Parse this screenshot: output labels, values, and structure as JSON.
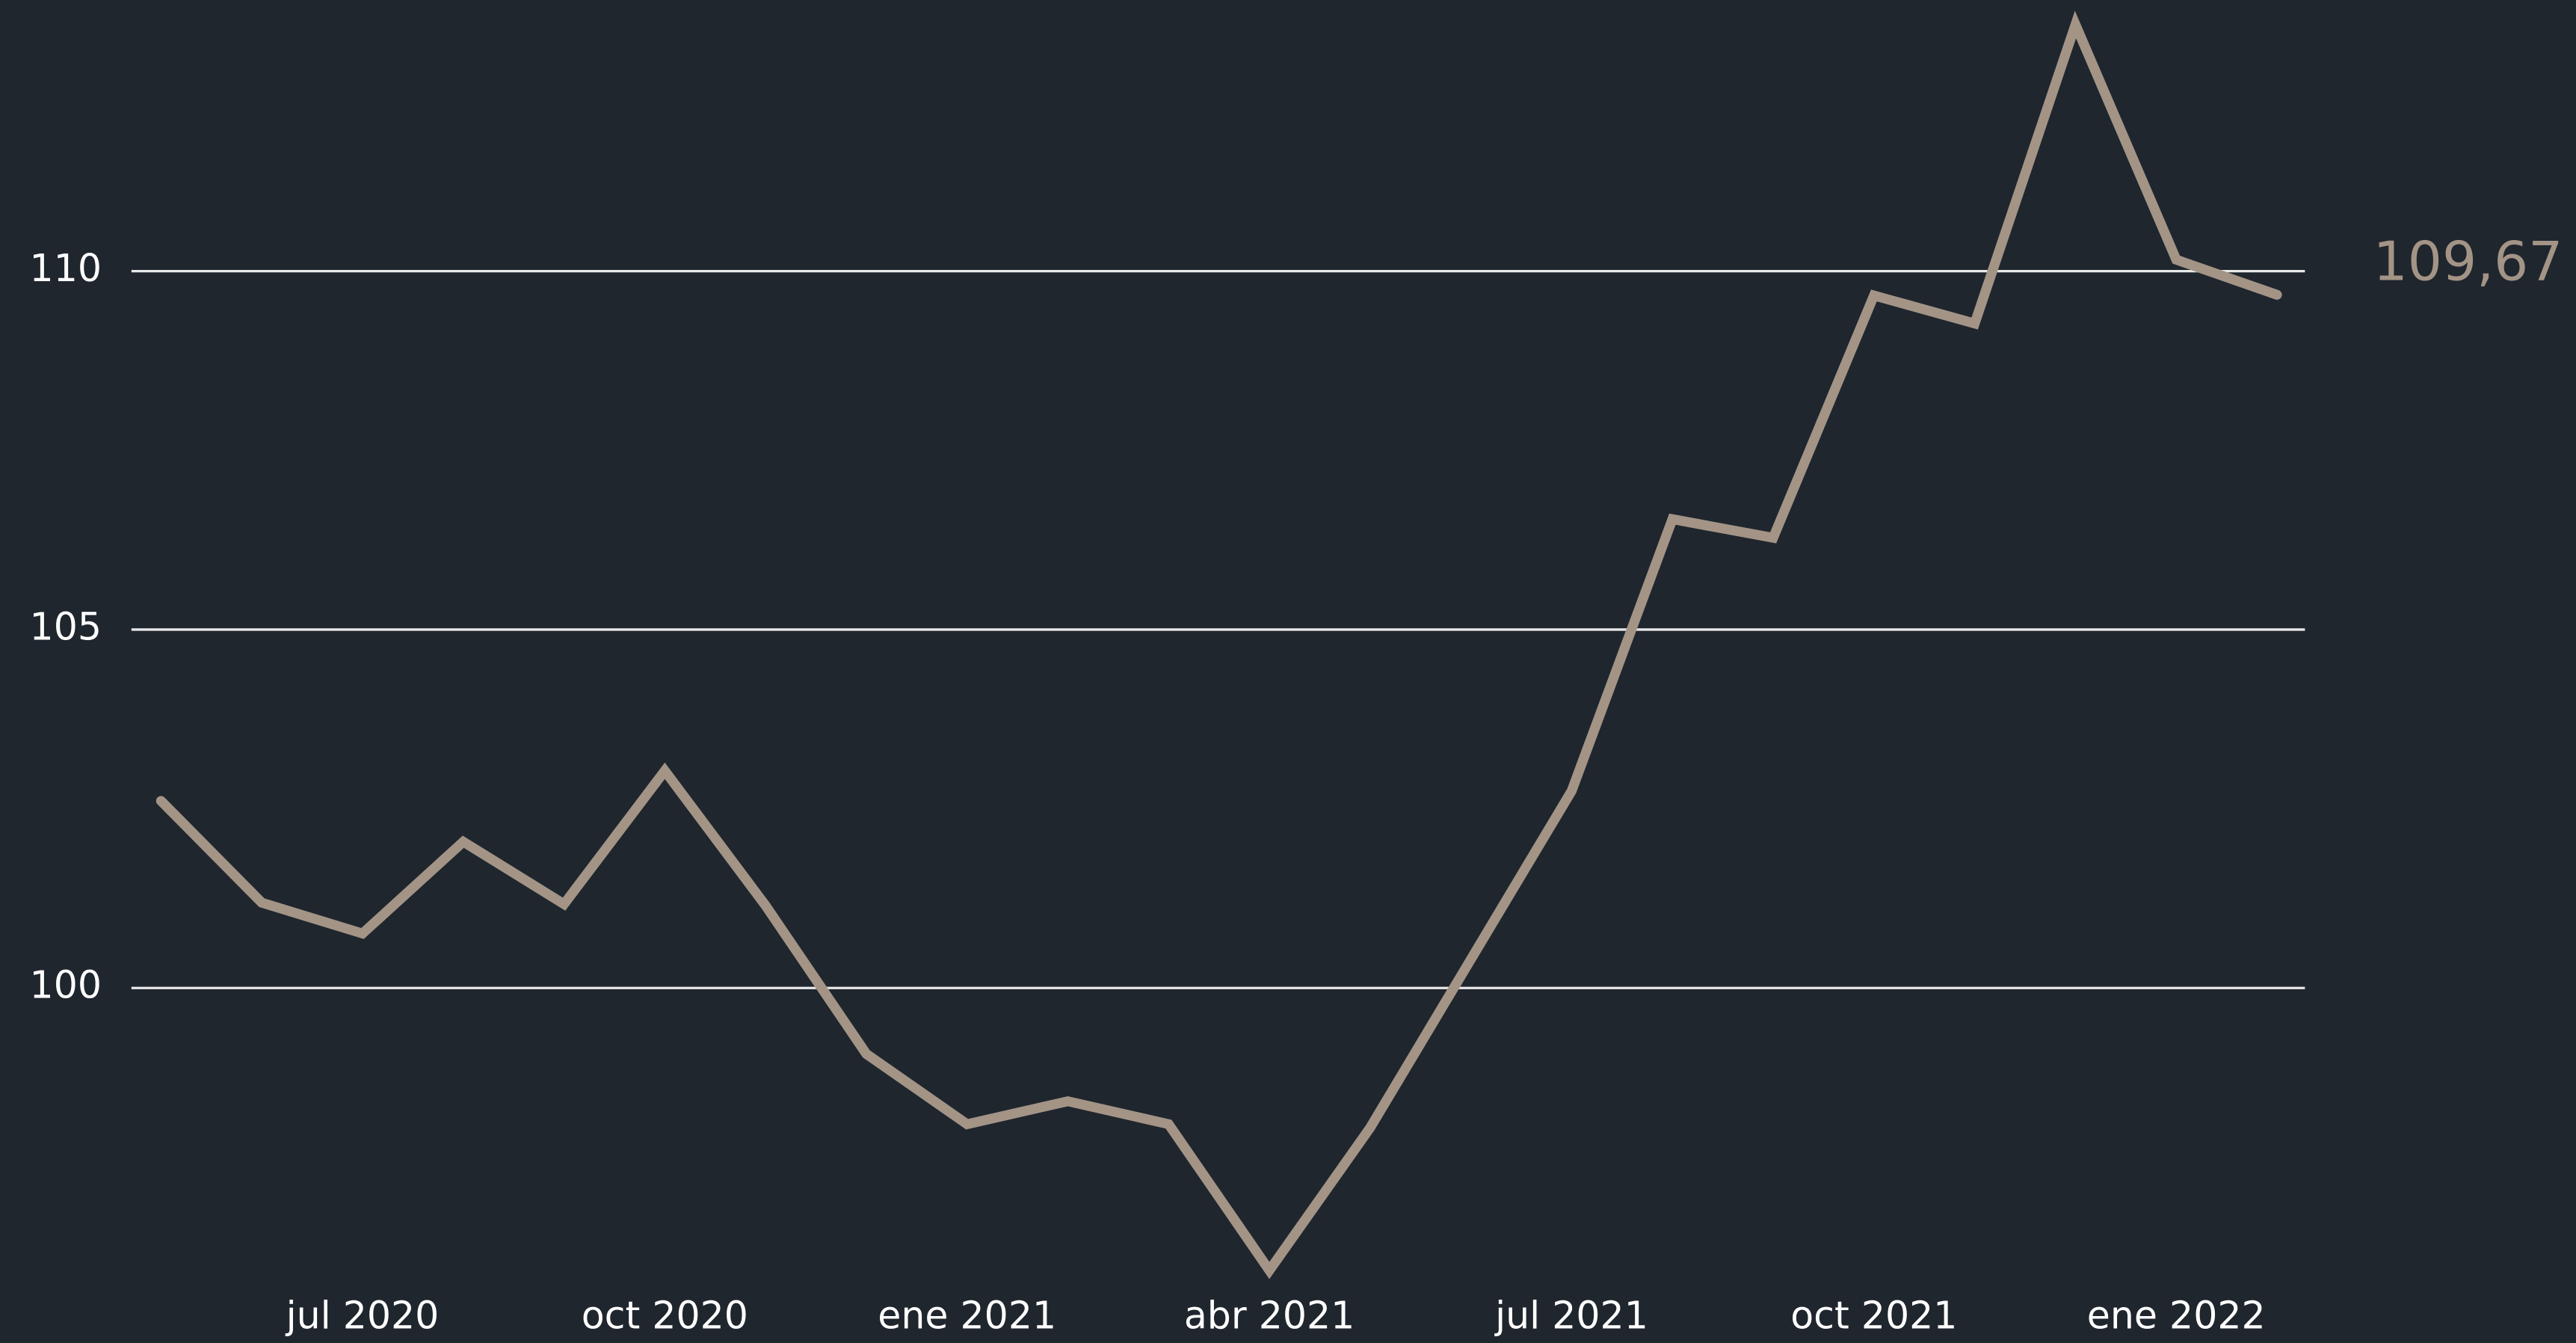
{
  "chart_data": {
    "type": "line",
    "categories": [
      null,
      null,
      "jul 2020",
      null,
      null,
      "oct 2020",
      null,
      null,
      "ene 2021",
      null,
      null,
      "abr 2021",
      null,
      null,
      "jul 2021",
      null,
      null,
      "oct 2021",
      null,
      null,
      "ene 2022",
      null
    ],
    "series": [
      {
        "color": "#a39486",
        "values": [
          102.61,
          101.19,
          100.76,
          102.04,
          101.17,
          103.03,
          101.15,
          99.08,
          98.1,
          98.42,
          98.1,
          96.06,
          98.05,
          100.4,
          102.75,
          106.54,
          106.28,
          109.66,
          109.27,
          113.44,
          110.16,
          109.67
        ],
        "value_labels": [
          null,
          null,
          null,
          null,
          null,
          null,
          null,
          null,
          null,
          null,
          null,
          null,
          null,
          null,
          null,
          null,
          null,
          null,
          null,
          null,
          null,
          "109,67"
        ]
      }
    ],
    "ylim": [
      95.05,
      113.78
    ],
    "yticks": [
      100,
      105,
      110
    ],
    "grid": true
  }
}
